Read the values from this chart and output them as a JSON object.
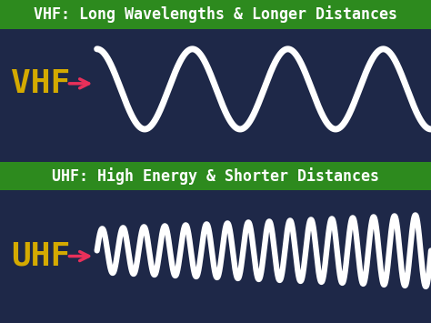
{
  "bg_color": "#1e2848",
  "green_banner_color": "#2d8a1e",
  "vhf_label": "VHF",
  "uhf_label": "UHF",
  "vhf_title": "VHF: Long Wavelengths & Longer Distances",
  "uhf_title": "UHF: High Energy & Shorter Distances",
  "label_color": "#d4aa00",
  "arrow_color": "#e8305a",
  "wave_color": "#ffffff",
  "title_text_color": "#ffffff",
  "vhf_cycles": 3.5,
  "uhf_cycles": 16,
  "vhf_amplitude": 0.72,
  "uhf_amplitude": 0.65,
  "vhf_linewidth": 5.0,
  "uhf_linewidth": 4.5,
  "label_fontsize": 26,
  "banner_fontsize": 12
}
